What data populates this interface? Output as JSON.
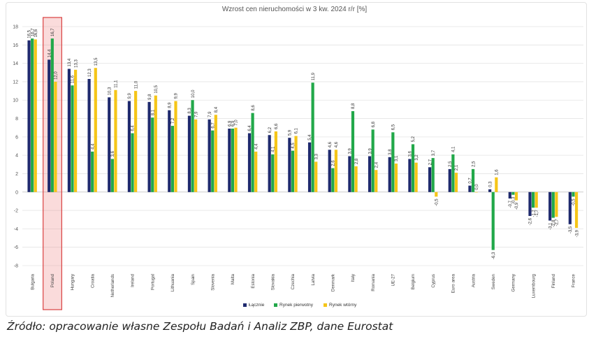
{
  "chart_data": {
    "type": "bar",
    "title": "Wzrost cen nieruchomości w 3 kw. 2024 r/r [%]",
    "xlabel": "",
    "ylabel": "",
    "ylim": [
      -8,
      18
    ],
    "yticks": [
      -8,
      -6,
      -4,
      -2,
      0,
      2,
      4,
      6,
      8,
      10,
      12,
      14,
      16,
      18
    ],
    "grid": true,
    "legend_position": "bottom",
    "highlight_category": "Poland",
    "categories": [
      "Bulgaria",
      "Poland",
      "Hungary",
      "Croatia",
      "Netherlands",
      "Ireland",
      "Portugal",
      "Lithuania",
      "Spain",
      "Slovenia",
      "Malta",
      "Estonia",
      "Slovakia",
      "Czechia",
      "Latvia",
      "Denmark",
      "Italy",
      "Romania",
      "UE-27",
      "Belgium",
      "Cyprus",
      "Euro area",
      "Austria",
      "Sweden",
      "Germany",
      "Luxembourg",
      "Finland",
      "France"
    ],
    "series": [
      {
        "name": "Łącznie",
        "color": "#1f2a6e",
        "values": [
          16.5,
          14.4,
          13.4,
          12.3,
          10.3,
          9.9,
          9.8,
          8.9,
          8.3,
          7.9,
          6.9,
          6.4,
          6.2,
          5.9,
          5.4,
          4.6,
          3.9,
          3.9,
          3.8,
          3.6,
          2.7,
          2.5,
          0.7,
          0.3,
          -0.7,
          -2.6,
          -3.1,
          -3.5
        ]
      },
      {
        "name": "Rynek pierwotny",
        "color": "#22a84a",
        "values": [
          16.7,
          16.7,
          11.6,
          4.4,
          3.6,
          6.4,
          8.1,
          7.2,
          10.0,
          6.7,
          6.9,
          8.6,
          4.1,
          4.5,
          11.9,
          2.6,
          8.8,
          6.8,
          6.5,
          5.2,
          3.7,
          4.1,
          2.5,
          -6.3,
          -0.3,
          -1.7,
          -2.8,
          -0.5
        ]
      },
      {
        "name": "Rynek wtórny",
        "color": "#f5c518",
        "values": [
          16.6,
          12.0,
          13.3,
          13.5,
          11.1,
          11.0,
          10.5,
          9.9,
          7.9,
          8.4,
          7.0,
          4.4,
          6.6,
          6.1,
          3.3,
          4.6,
          2.8,
          2.4,
          3.1,
          3.2,
          -0.5,
          2.1,
          0.0,
          1.6,
          -0.9,
          -1.7,
          -2.7,
          -3.9
        ]
      }
    ]
  },
  "source_note": "Źródło: opracowanie własne Zespołu Badań i Analiz ZBP, dane Eurostat"
}
